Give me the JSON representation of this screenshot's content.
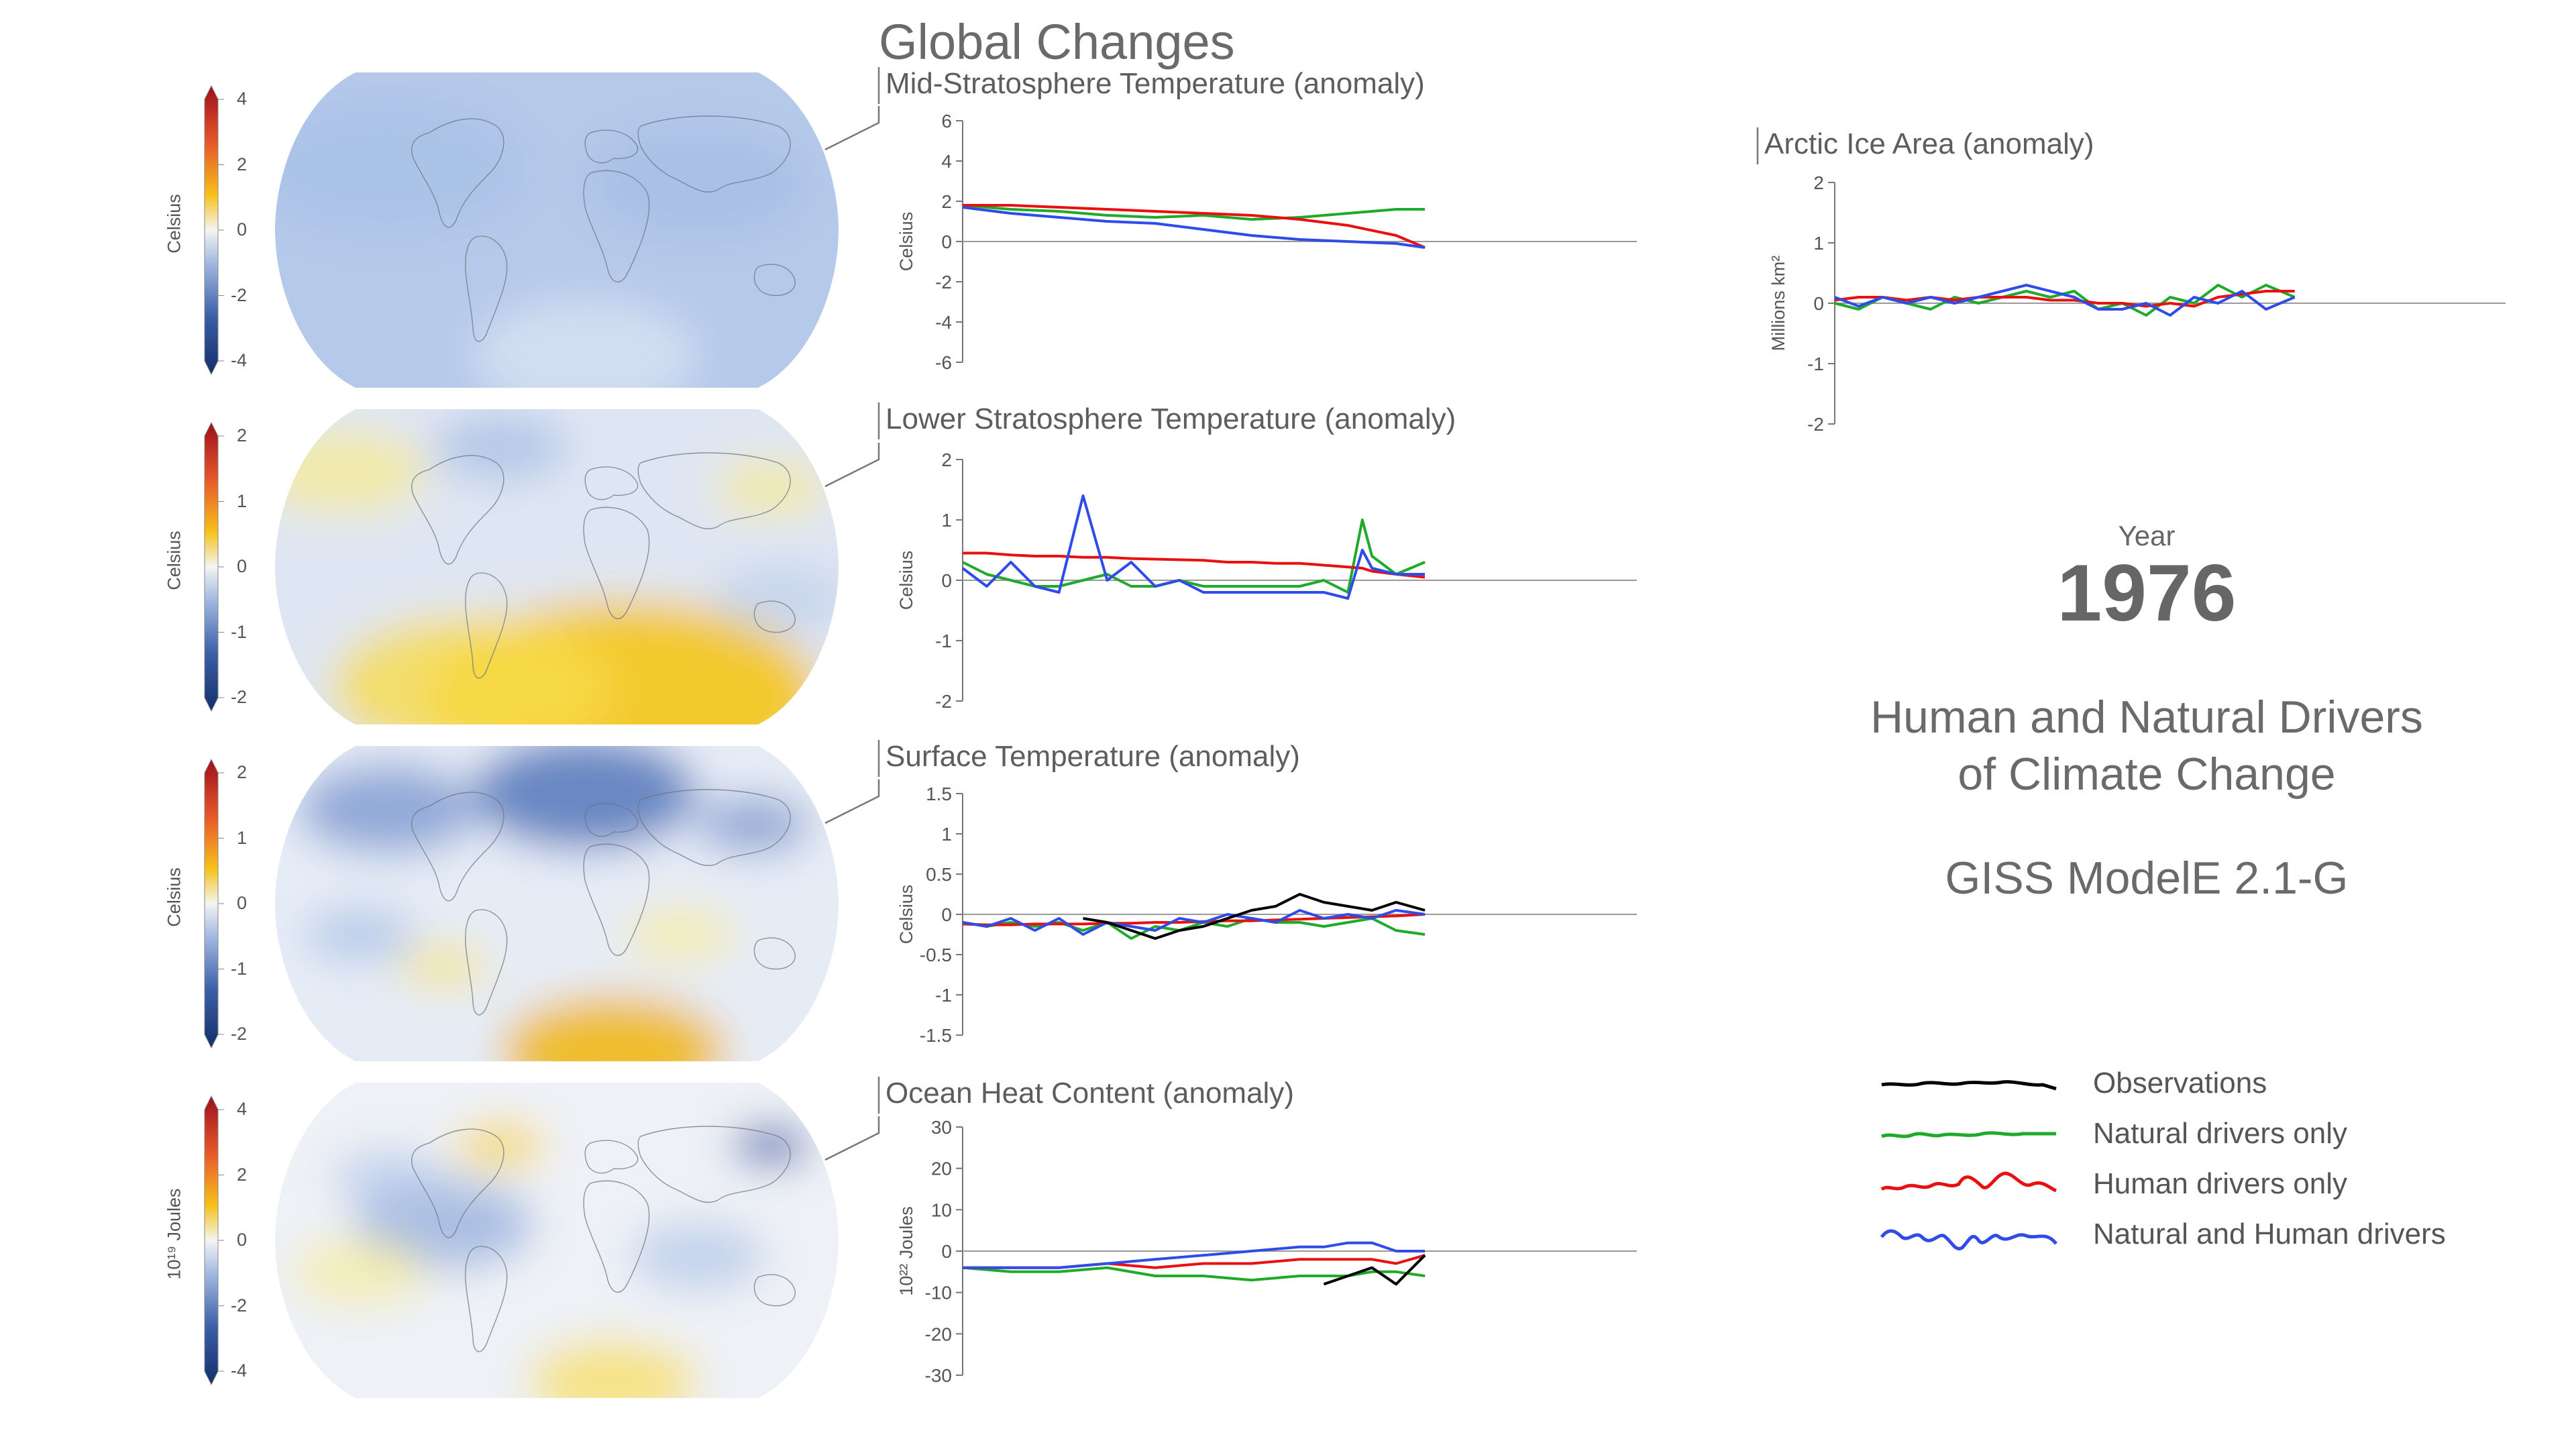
{
  "header": {
    "title": "Global Changes"
  },
  "year": {
    "label": "Year",
    "value": "1976"
  },
  "info": {
    "line1": "Human and Natural Drivers",
    "line2": "of Climate Change",
    "model": "GISS ModelE 2.1-G"
  },
  "colors": {
    "observations": "#000000",
    "natural": "#1faa2a",
    "human": "#e81010",
    "both": "#2f4be8",
    "zero_line": "#9a9a9a",
    "axis": "#777777"
  },
  "legend": [
    {
      "label": "Observations",
      "key": "observations"
    },
    {
      "label": "Natural drivers only",
      "key": "natural"
    },
    {
      "label": "Human drivers only",
      "key": "human"
    },
    {
      "label": "Natural and Human drivers",
      "key": "both"
    }
  ],
  "maps": [
    {
      "unit_label": "Celsius",
      "ticks": [
        "4",
        "2",
        "0",
        "-2",
        "-4"
      ],
      "palette": "mostly-blue"
    },
    {
      "unit_label": "Celsius",
      "ticks": [
        "2",
        "1",
        "0",
        "-1",
        "-2"
      ],
      "palette": "yellow-south"
    },
    {
      "unit_label": "Celsius",
      "ticks": [
        "2",
        "1",
        "0",
        "-1",
        "-2"
      ],
      "palette": "mixed"
    },
    {
      "unit_label": "10¹⁹ Joules",
      "ticks": [
        "4",
        "2",
        "0",
        "-2",
        "-4"
      ],
      "palette": "ocean"
    }
  ],
  "chart_data": [
    {
      "type": "line",
      "title": "Mid-Stratosphere Temperature (anomaly)",
      "ylabel": "Celsius",
      "ylim": [
        -6,
        6
      ],
      "yticks": [
        "6",
        "4",
        "2",
        "0",
        "-2",
        "-4",
        "-6"
      ],
      "x": [
        1880,
        1890,
        1900,
        1910,
        1920,
        1930,
        1940,
        1950,
        1960,
        1970,
        1976
      ],
      "series": [
        {
          "key": "natural",
          "values": [
            1.8,
            1.6,
            1.5,
            1.3,
            1.2,
            1.3,
            1.1,
            1.2,
            1.4,
            1.6,
            1.6
          ]
        },
        {
          "key": "human",
          "values": [
            1.8,
            1.8,
            1.7,
            1.6,
            1.5,
            1.4,
            1.3,
            1.1,
            0.8,
            0.3,
            -0.3
          ]
        },
        {
          "key": "both",
          "values": [
            1.7,
            1.4,
            1.2,
            1.0,
            0.9,
            0.6,
            0.3,
            0.1,
            0.0,
            -0.1,
            -0.3
          ]
        }
      ]
    },
    {
      "type": "line",
      "title": "Lower Stratosphere Temperature (anomaly)",
      "ylabel": "Celsius",
      "ylim": [
        -2,
        2
      ],
      "yticks": [
        "2",
        "1",
        "0",
        "-1",
        "-2"
      ],
      "x": [
        1880,
        1885,
        1890,
        1895,
        1900,
        1905,
        1910,
        1915,
        1920,
        1925,
        1930,
        1935,
        1940,
        1945,
        1950,
        1955,
        1960,
        1963,
        1965,
        1970,
        1976
      ],
      "series": [
        {
          "key": "natural",
          "values": [
            0.3,
            0.1,
            0.0,
            -0.1,
            -0.1,
            0.0,
            0.1,
            -0.1,
            -0.1,
            0.0,
            -0.1,
            -0.1,
            -0.1,
            -0.1,
            -0.1,
            0.0,
            -0.2,
            1.0,
            0.4,
            0.1,
            0.3
          ]
        },
        {
          "key": "human",
          "values": [
            0.45,
            0.45,
            0.42,
            0.4,
            0.4,
            0.38,
            0.38,
            0.36,
            0.35,
            0.34,
            0.33,
            0.3,
            0.3,
            0.28,
            0.28,
            0.25,
            0.22,
            0.2,
            0.15,
            0.1,
            0.05
          ]
        },
        {
          "key": "both",
          "values": [
            0.2,
            -0.1,
            0.3,
            -0.1,
            -0.2,
            1.4,
            0.0,
            0.3,
            -0.1,
            0.0,
            -0.2,
            -0.2,
            -0.2,
            -0.2,
            -0.2,
            -0.2,
            -0.3,
            0.5,
            0.2,
            0.1,
            0.1
          ]
        }
      ]
    },
    {
      "type": "line",
      "title": "Surface Temperature (anomaly)",
      "ylabel": "Celsius",
      "ylim": [
        -1.5,
        1.5
      ],
      "yticks": [
        "1.5",
        "1",
        "0.5",
        "0",
        "-0.5",
        "-1",
        "-1.5"
      ],
      "x": [
        1880,
        1885,
        1890,
        1895,
        1900,
        1905,
        1910,
        1915,
        1920,
        1925,
        1930,
        1935,
        1940,
        1945,
        1950,
        1955,
        1960,
        1965,
        1970,
        1976
      ],
      "series": [
        {
          "key": "observations",
          "values": [
            null,
            null,
            null,
            null,
            null,
            -0.05,
            -0.1,
            -0.2,
            -0.3,
            -0.2,
            -0.15,
            -0.05,
            0.05,
            0.1,
            0.25,
            0.15,
            0.1,
            0.05,
            0.15,
            0.05
          ]
        },
        {
          "key": "natural",
          "values": [
            -0.1,
            -0.15,
            -0.1,
            -0.15,
            -0.1,
            -0.2,
            -0.1,
            -0.3,
            -0.15,
            -0.2,
            -0.1,
            -0.15,
            -0.05,
            -0.1,
            -0.1,
            -0.15,
            -0.1,
            -0.05,
            -0.2,
            -0.25
          ]
        },
        {
          "key": "human",
          "values": [
            -0.12,
            -0.13,
            -0.13,
            -0.12,
            -0.12,
            -0.12,
            -0.11,
            -0.11,
            -0.1,
            -0.1,
            -0.09,
            -0.08,
            -0.08,
            -0.07,
            -0.06,
            -0.05,
            -0.04,
            -0.03,
            -0.02,
            0.0
          ]
        },
        {
          "key": "both",
          "values": [
            -0.1,
            -0.15,
            -0.05,
            -0.2,
            -0.05,
            -0.25,
            -0.1,
            -0.15,
            -0.2,
            -0.05,
            -0.1,
            0.0,
            -0.05,
            -0.1,
            0.05,
            -0.05,
            0.0,
            -0.05,
            0.05,
            0.0
          ]
        }
      ]
    },
    {
      "type": "line",
      "title": "Ocean Heat Content (anomaly)",
      "ylabel": "10²² Joules",
      "ylim": [
        -30,
        30
      ],
      "yticks": [
        "30",
        "20",
        "10",
        "0",
        "-10",
        "-20",
        "-30"
      ],
      "x": [
        1880,
        1890,
        1900,
        1910,
        1920,
        1930,
        1940,
        1950,
        1955,
        1960,
        1965,
        1970,
        1976
      ],
      "series": [
        {
          "key": "observations",
          "values": [
            null,
            null,
            null,
            null,
            null,
            null,
            null,
            null,
            -8,
            -6,
            -4,
            -8,
            -1
          ]
        },
        {
          "key": "natural",
          "values": [
            -4,
            -5,
            -5,
            -4,
            -6,
            -6,
            -7,
            -6,
            -6,
            -6,
            -5,
            -5,
            -6
          ]
        },
        {
          "key": "human",
          "values": [
            -4,
            -4,
            -4,
            -3,
            -4,
            -3,
            -3,
            -2,
            -2,
            -2,
            -2,
            -3,
            -1
          ]
        },
        {
          "key": "both",
          "values": [
            -4,
            -4,
            -4,
            -3,
            -2,
            -1,
            0,
            1,
            1,
            2,
            2,
            0,
            0
          ]
        }
      ]
    },
    {
      "type": "line",
      "title": "Arctic Ice Area (anomaly)",
      "ylabel": "Millions km²",
      "ylim": [
        -2,
        2
      ],
      "yticks": [
        "2",
        "1",
        "0",
        "-1",
        "-2"
      ],
      "x": [
        1880,
        1885,
        1890,
        1895,
        1900,
        1905,
        1910,
        1915,
        1920,
        1925,
        1930,
        1935,
        1940,
        1945,
        1950,
        1955,
        1960,
        1965,
        1970,
        1976
      ],
      "series": [
        {
          "key": "natural",
          "values": [
            0.0,
            -0.1,
            0.1,
            0.0,
            -0.1,
            0.1,
            0.0,
            0.1,
            0.2,
            0.1,
            0.2,
            -0.1,
            0.0,
            -0.2,
            0.1,
            0.0,
            0.3,
            0.1,
            0.3,
            0.1
          ]
        },
        {
          "key": "human",
          "values": [
            0.05,
            0.1,
            0.1,
            0.05,
            0.1,
            0.05,
            0.1,
            0.1,
            0.1,
            0.05,
            0.05,
            0.0,
            0.0,
            -0.05,
            0.0,
            -0.05,
            0.1,
            0.15,
            0.2,
            0.2
          ]
        },
        {
          "key": "both",
          "values": [
            0.1,
            -0.05,
            0.1,
            0.0,
            0.1,
            0.0,
            0.1,
            0.2,
            0.3,
            0.2,
            0.1,
            -0.1,
            -0.1,
            0.0,
            -0.2,
            0.1,
            0.0,
            0.2,
            -0.1,
            0.1
          ]
        }
      ]
    }
  ]
}
